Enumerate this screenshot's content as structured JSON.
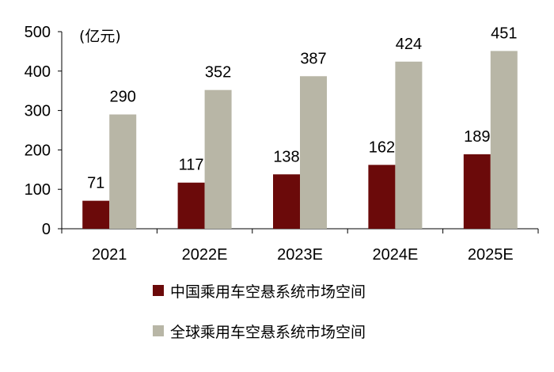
{
  "chart_data": {
    "type": "bar",
    "unit_label": "(亿元)",
    "categories": [
      "2021",
      "2022E",
      "2023E",
      "2024E",
      "2025E"
    ],
    "series": [
      {
        "name": "中国乘用车空悬系统市场空间",
        "color": "#6b0a0a",
        "values": [
          71,
          117,
          138,
          162,
          189
        ]
      },
      {
        "name": "全球乘用车空悬系统市场空间",
        "color": "#b8b6a6",
        "values": [
          290,
          352,
          387,
          424,
          451
        ]
      }
    ],
    "ylim": [
      0,
      500
    ],
    "yticks": [
      0,
      100,
      200,
      300,
      400,
      500
    ],
    "grid": false,
    "legend_position": "bottom"
  }
}
